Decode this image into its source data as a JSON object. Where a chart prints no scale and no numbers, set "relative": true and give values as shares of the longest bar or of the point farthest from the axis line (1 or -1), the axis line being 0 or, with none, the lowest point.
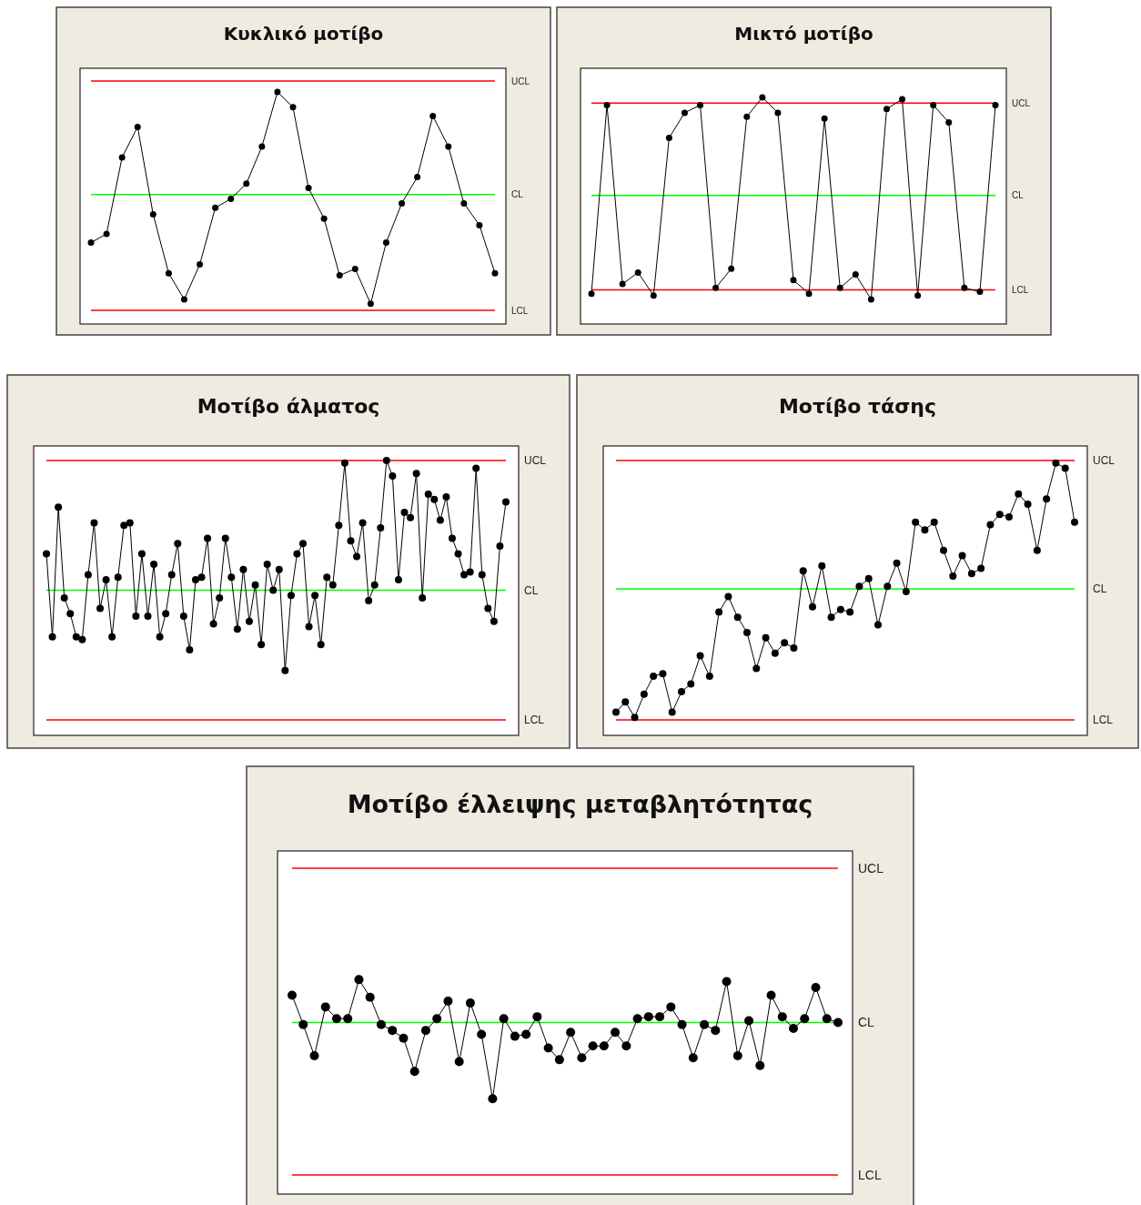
{
  "chart_data": [
    {
      "type": "line",
      "title": "Κυκλικό μοτίβο",
      "relative": true,
      "marker": "circle",
      "line_style": "solid",
      "categories": [
        null,
        null,
        null,
        null,
        null,
        null,
        null,
        null,
        null,
        null,
        null,
        null,
        null,
        null,
        null,
        null,
        null,
        null,
        null,
        null,
        null,
        null,
        null,
        null,
        null,
        null,
        null
      ],
      "series": [
        {
          "color": "#000000",
          "values": [
            0.31,
            0.35,
            0.7,
            0.84,
            0.44,
            0.17,
            0.05,
            0.21,
            0.47,
            0.51,
            0.58,
            0.75,
            1,
            0.93,
            0.56,
            0.42,
            0.16,
            0.19,
            0.03,
            0.31,
            0.49,
            0.61,
            0.89,
            0.75,
            0.49,
            0.39,
            0.17
          ]
        }
      ],
      "ref_lines": [
        {
          "axis": "y",
          "value": 1.05,
          "label": "UCL",
          "color": "#ff0000"
        },
        {
          "axis": "y",
          "value": 0.53,
          "label": "CL",
          "color": "#00ff00"
        },
        {
          "axis": "y",
          "value": 0,
          "label": "LCL",
          "color": "#ff0000"
        }
      ]
    },
    {
      "type": "line",
      "title": "Μικτό μοτίβο",
      "relative": true,
      "marker": "circle",
      "line_style": "solid",
      "categories": [
        null,
        null,
        null,
        null,
        null,
        null,
        null,
        null,
        null,
        null,
        null,
        null,
        null,
        null,
        null,
        null,
        null,
        null,
        null,
        null,
        null,
        null,
        null,
        null,
        null,
        null,
        null
      ],
      "series": [
        {
          "color": "#000000",
          "values": [
            -0.02,
            0.96,
            0.03,
            0.09,
            -0.03,
            0.79,
            0.92,
            0.96,
            0.01,
            0.11,
            0.9,
            1,
            0.92,
            0.05,
            -0.02,
            0.89,
            0.01,
            0.08,
            -0.05,
            0.94,
            0.99,
            -0.03,
            0.96,
            0.87,
            0.01,
            -0.01,
            0.96
          ]
        }
      ],
      "ref_lines": [
        {
          "axis": "y",
          "value": 0.97,
          "label": "UCL",
          "color": "#ff0000"
        },
        {
          "axis": "y",
          "value": 0.49,
          "label": "CL",
          "color": "#00ff00"
        },
        {
          "axis": "y",
          "value": 0,
          "label": "LCL",
          "color": "#ff0000"
        }
      ]
    },
    {
      "type": "line",
      "title": "Μοτίβο άλματος",
      "relative": true,
      "marker": "circle",
      "line_style": "solid",
      "categories": [
        null,
        null,
        null,
        null,
        null,
        null,
        null,
        null,
        null,
        null,
        null,
        null,
        null,
        null,
        null,
        null,
        null,
        null,
        null,
        null,
        null,
        null,
        null,
        null,
        null,
        null,
        null,
        null,
        null,
        null,
        null,
        null,
        null,
        null,
        null,
        null,
        null,
        null,
        null,
        null,
        null,
        null,
        null,
        null,
        null,
        null,
        null,
        null,
        null,
        null,
        null,
        null,
        null,
        null,
        null,
        null,
        null,
        null,
        null,
        null,
        null,
        null,
        null,
        null,
        null,
        null,
        null,
        null,
        null,
        null,
        null,
        null,
        null,
        null,
        null,
        null,
        null,
        null
      ],
      "series": [
        {
          "color": "#000000",
          "values": [
            0.64,
            0.32,
            0.82,
            0.47,
            0.41,
            0.32,
            0.31,
            0.56,
            0.76,
            0.43,
            0.54,
            0.32,
            0.55,
            0.75,
            0.76,
            0.4,
            0.64,
            0.4,
            0.6,
            0.32,
            0.41,
            0.56,
            0.68,
            0.4,
            0.27,
            0.54,
            0.55,
            0.7,
            0.37,
            0.47,
            0.7,
            0.55,
            0.35,
            0.58,
            0.38,
            0.52,
            0.29,
            0.6,
            0.5,
            0.58,
            0.19,
            0.48,
            0.64,
            0.68,
            0.36,
            0.48,
            0.29,
            0.55,
            0.52,
            0.75,
            0.99,
            0.69,
            0.63,
            0.76,
            0.46,
            0.52,
            0.74,
            1,
            0.94,
            0.54,
            0.8,
            0.78,
            0.95,
            0.47,
            0.87,
            0.85,
            0.77,
            0.86,
            0.7,
            0.64,
            0.56,
            0.57,
            0.97,
            0.56,
            0.43,
            0.38,
            0.67,
            0.84
          ]
        }
      ],
      "ref_lines": [
        {
          "axis": "y",
          "value": 1.0,
          "label": "UCL",
          "color": "#ff0000"
        },
        {
          "axis": "y",
          "value": 0.5,
          "label": "CL",
          "color": "#00ff00"
        },
        {
          "axis": "y",
          "value": 0,
          "label": "LCL",
          "color": "#ff0000"
        }
      ]
    },
    {
      "type": "line",
      "title": "Μοτίβο τάσης",
      "relative": true,
      "marker": "circle",
      "line_style": "solid",
      "categories": [
        null,
        null,
        null,
        null,
        null,
        null,
        null,
        null,
        null,
        null,
        null,
        null,
        null,
        null,
        null,
        null,
        null,
        null,
        null,
        null,
        null,
        null,
        null,
        null,
        null,
        null,
        null,
        null,
        null,
        null,
        null,
        null,
        null,
        null,
        null,
        null,
        null,
        null,
        null,
        null,
        null,
        null,
        null,
        null,
        null,
        null,
        null,
        null,
        null,
        null
      ],
      "series": [
        {
          "color": "#000000",
          "values": [
            0.03,
            0.07,
            0.01,
            0.1,
            0.17,
            0.18,
            0.03,
            0.11,
            0.14,
            0.25,
            0.17,
            0.42,
            0.48,
            0.4,
            0.34,
            0.2,
            0.32,
            0.26,
            0.3,
            0.28,
            0.58,
            0.44,
            0.6,
            0.4,
            0.43,
            0.42,
            0.52,
            0.55,
            0.37,
            0.52,
            0.61,
            0.5,
            0.77,
            0.74,
            0.77,
            0.66,
            0.56,
            0.64,
            0.57,
            0.59,
            0.76,
            0.8,
            0.79,
            0.88,
            0.84,
            0.66,
            0.86,
            1,
            0.98,
            0.77
          ]
        }
      ],
      "ref_lines": [
        {
          "axis": "y",
          "value": 1.01,
          "label": "UCL",
          "color": "#ff0000"
        },
        {
          "axis": "y",
          "value": 0.51,
          "label": "CL",
          "color": "#00ff00"
        },
        {
          "axis": "y",
          "value": 0,
          "label": "LCL",
          "color": "#ff0000"
        }
      ]
    },
    {
      "type": "line",
      "title": "Μοτίβο έλλειψης μεταβλητότητας",
      "relative": true,
      "marker": "circle",
      "line_style": "solid",
      "categories": [
        null,
        null,
        null,
        null,
        null,
        null,
        null,
        null,
        null,
        null,
        null,
        null,
        null,
        null,
        null,
        null,
        null,
        null,
        null,
        null,
        null,
        null,
        null,
        null,
        null,
        null,
        null,
        null,
        null,
        null,
        null,
        null,
        null,
        null,
        null,
        null,
        null,
        null,
        null,
        null,
        null,
        null,
        null,
        null,
        null,
        null,
        null,
        null,
        null,
        null
      ],
      "series": [
        {
          "color": "#000000",
          "values": [
            0.92,
            0.77,
            0.61,
            0.86,
            0.8,
            0.8,
            1,
            0.91,
            0.77,
            0.74,
            0.7,
            0.53,
            0.74,
            0.8,
            0.89,
            0.58,
            0.88,
            0.72,
            0.39,
            0.8,
            0.71,
            0.72,
            0.81,
            0.65,
            0.59,
            0.73,
            0.6,
            0.66,
            0.66,
            0.73,
            0.66,
            0.8,
            0.81,
            0.81,
            0.86,
            0.77,
            0.6,
            0.77,
            0.74,
            0.99,
            0.61,
            0.79,
            0.56,
            0.92,
            0.81,
            0.75,
            0.8,
            0.96,
            0.8,
            0.78
          ]
        }
      ],
      "ref_lines": [
        {
          "axis": "y",
          "value": 1.57,
          "label": "UCL",
          "color": "#ff0000"
        },
        {
          "axis": "y",
          "value": 0.78,
          "label": "CL",
          "color": "#00ff00"
        },
        {
          "axis": "y",
          "value": 0,
          "label": "LCL",
          "color": "#ff0000"
        }
      ]
    }
  ]
}
